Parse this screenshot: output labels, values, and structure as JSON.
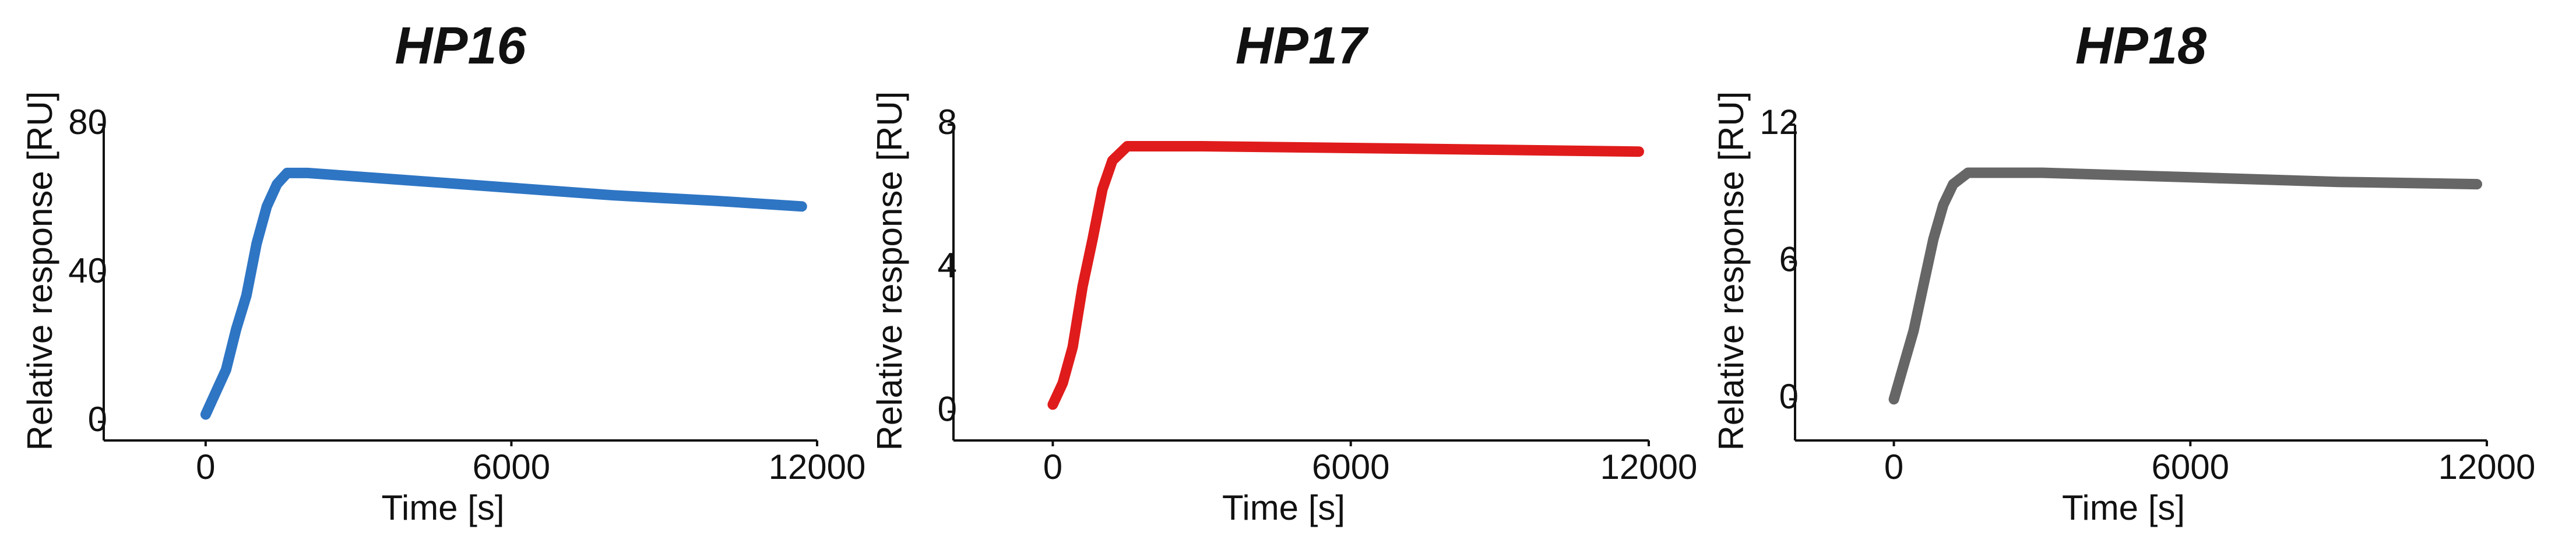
{
  "chart_data": [
    {
      "type": "line",
      "title": "HP16",
      "xlabel": "Time [s]",
      "ylabel": "Relative response [RU]",
      "x": [
        0,
        200,
        400,
        600,
        800,
        1000,
        1200,
        1400,
        1600,
        2000,
        4000,
        6000,
        8000,
        10000,
        11700
      ],
      "values": [
        2,
        8,
        14,
        25,
        34,
        48,
        58,
        64,
        67,
        67,
        65,
        63,
        61,
        59.5,
        58
      ],
      "color": "#2e75c4",
      "xlim": [
        -2000,
        12000
      ],
      "xticks": [
        0,
        6000,
        12000
      ],
      "ylim": [
        -5,
        80
      ],
      "yticks": [
        0,
        40,
        80
      ]
    },
    {
      "type": "line",
      "title": "HP17",
      "xlabel": "Time [s]",
      "ylabel": "Relative response [RU]",
      "x": [
        0,
        200,
        400,
        600,
        800,
        1000,
        1200,
        1500,
        3000,
        6000,
        9000,
        11800
      ],
      "values": [
        0.2,
        0.8,
        1.8,
        3.5,
        4.8,
        6.2,
        7.0,
        7.4,
        7.4,
        7.35,
        7.3,
        7.25
      ],
      "color": "#e01b1b",
      "xlim": [
        -2000,
        12000
      ],
      "xticks": [
        0,
        6000,
        12000
      ],
      "ylim": [
        -0.8,
        8
      ],
      "yticks": [
        0,
        4,
        8
      ]
    },
    {
      "type": "line",
      "title": "HP18",
      "xlabel": "Time [s]",
      "ylabel": "Relative response [RU]",
      "x": [
        0,
        200,
        400,
        600,
        800,
        1000,
        1200,
        1500,
        3000,
        6000,
        9000,
        11800
      ],
      "values": [
        0,
        1.5,
        3,
        5,
        7,
        8.5,
        9.4,
        9.9,
        9.9,
        9.7,
        9.5,
        9.4
      ],
      "color": "#666666",
      "xlim": [
        -2000,
        12000
      ],
      "xticks": [
        0,
        6000,
        12000
      ],
      "ylim": [
        -1.8,
        12
      ],
      "yticks": [
        0,
        6,
        12
      ]
    }
  ]
}
